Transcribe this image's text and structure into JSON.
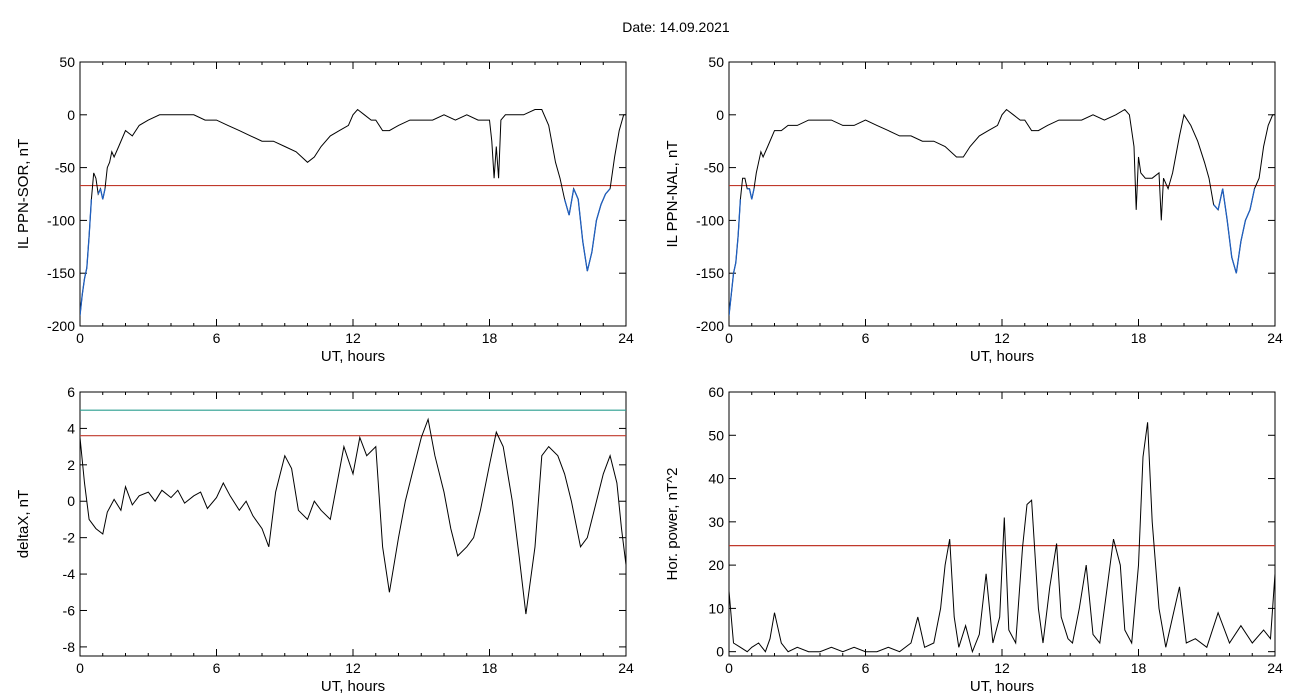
{
  "page": {
    "title": "Date:  14.09.2021"
  },
  "chart_data": [
    {
      "id": "il-sor",
      "type": "line",
      "xlabel": "UT, hours",
      "ylabel": "IL PPN-SOR, nT",
      "xlim": [
        0,
        24
      ],
      "ylim": [
        -200,
        50
      ],
      "xticks": [
        0,
        6,
        12,
        18,
        24
      ],
      "yticks": [
        -200,
        -150,
        -100,
        -50,
        0,
        50
      ],
      "threshold": {
        "value": -67,
        "color": "#c0392b"
      },
      "highlight_color": "#1f5fbf",
      "series": [
        {
          "color": "#000000",
          "x": [
            0,
            0.1,
            0.2,
            0.3,
            0.4,
            0.5,
            0.6,
            0.7,
            0.8,
            0.9,
            1.0,
            1.1,
            1.2,
            1.3,
            1.4,
            1.5,
            1.7,
            2.0,
            2.3,
            2.6,
            3.0,
            3.5,
            4.0,
            4.5,
            5.0,
            5.5,
            6.0,
            6.5,
            7.0,
            7.5,
            8.0,
            8.5,
            9.0,
            9.5,
            10.0,
            10.3,
            10.6,
            11.0,
            11.4,
            11.8,
            12.0,
            12.2,
            12.5,
            12.8,
            13.0,
            13.3,
            13.6,
            14.0,
            14.5,
            15.0,
            15.5,
            16.0,
            16.5,
            17.0,
            17.5,
            18.0,
            18.1,
            18.2,
            18.3,
            18.4,
            18.5,
            18.7,
            19.0,
            19.5,
            20.0,
            20.3,
            20.6,
            20.9,
            21.1,
            21.3,
            21.5,
            21.7,
            21.9,
            22.1,
            22.3,
            22.5,
            22.7,
            22.9,
            23.1,
            23.3,
            23.5,
            23.7,
            23.9,
            24.0
          ],
          "y": [
            -190,
            -170,
            -155,
            -145,
            -115,
            -80,
            -55,
            -60,
            -75,
            -70,
            -80,
            -70,
            -50,
            -45,
            -35,
            -40,
            -30,
            -15,
            -20,
            -10,
            -5,
            0,
            0,
            0,
            0,
            -5,
            -5,
            -10,
            -15,
            -20,
            -25,
            -25,
            -30,
            -35,
            -45,
            -40,
            -30,
            -20,
            -15,
            -10,
            0,
            5,
            0,
            -5,
            -5,
            -15,
            -15,
            -10,
            -5,
            -5,
            -5,
            0,
            -5,
            0,
            -5,
            -5,
            -25,
            -60,
            -30,
            -60,
            -5,
            0,
            0,
            0,
            5,
            5,
            -10,
            -45,
            -60,
            -80,
            -95,
            -70,
            -80,
            -120,
            -148,
            -130,
            -100,
            -85,
            -75,
            -70,
            -40,
            -15,
            0,
            0
          ]
        }
      ]
    },
    {
      "id": "il-nal",
      "type": "line",
      "xlabel": "UT, hours",
      "ylabel": "IL PPN-NAL, nT",
      "xlim": [
        0,
        24
      ],
      "ylim": [
        -200,
        50
      ],
      "xticks": [
        0,
        6,
        12,
        18,
        24
      ],
      "yticks": [
        -200,
        -150,
        -100,
        -50,
        0,
        50
      ],
      "threshold": {
        "value": -67,
        "color": "#c0392b"
      },
      "highlight_color": "#1f5fbf",
      "series": [
        {
          "color": "#000000",
          "x": [
            0,
            0.1,
            0.2,
            0.3,
            0.4,
            0.5,
            0.6,
            0.7,
            0.8,
            0.9,
            1.0,
            1.1,
            1.2,
            1.3,
            1.4,
            1.5,
            1.7,
            2.0,
            2.3,
            2.6,
            3.0,
            3.5,
            4.0,
            4.5,
            5.0,
            5.5,
            6.0,
            6.5,
            7.0,
            7.5,
            8.0,
            8.5,
            9.0,
            9.5,
            10.0,
            10.3,
            10.6,
            11.0,
            11.4,
            11.8,
            12.0,
            12.2,
            12.5,
            12.8,
            13.0,
            13.3,
            13.6,
            14.0,
            14.5,
            15.0,
            15.5,
            16.0,
            16.5,
            17.0,
            17.4,
            17.6,
            17.8,
            17.9,
            18.0,
            18.1,
            18.3,
            18.6,
            18.9,
            19.0,
            19.1,
            19.3,
            19.5,
            19.8,
            20.0,
            20.3,
            20.6,
            20.9,
            21.1,
            21.3,
            21.5,
            21.7,
            21.9,
            22.1,
            22.3,
            22.5,
            22.7,
            22.9,
            23.1,
            23.3,
            23.5,
            23.7,
            23.9,
            24.0
          ],
          "y": [
            -190,
            -170,
            -150,
            -140,
            -115,
            -80,
            -60,
            -60,
            -70,
            -70,
            -80,
            -70,
            -55,
            -45,
            -35,
            -40,
            -30,
            -15,
            -15,
            -10,
            -10,
            -5,
            -5,
            -5,
            -10,
            -10,
            -5,
            -10,
            -15,
            -20,
            -20,
            -25,
            -25,
            -30,
            -40,
            -40,
            -30,
            -20,
            -15,
            -10,
            0,
            5,
            0,
            -5,
            -5,
            -15,
            -15,
            -10,
            -5,
            -5,
            -5,
            0,
            -5,
            0,
            5,
            0,
            -30,
            -90,
            -40,
            -55,
            -60,
            -60,
            -55,
            -100,
            -60,
            -70,
            -55,
            -20,
            0,
            -10,
            -25,
            -45,
            -60,
            -85,
            -90,
            -70,
            -100,
            -135,
            -150,
            -120,
            -100,
            -90,
            -70,
            -60,
            -30,
            -10,
            0,
            0
          ]
        }
      ]
    },
    {
      "id": "delta-x",
      "type": "line",
      "xlabel": "UT, hours",
      "ylabel": "deltaX, nT",
      "xlim": [
        0,
        24
      ],
      "ylim": [
        -8.5,
        6
      ],
      "xticks": [
        0,
        6,
        12,
        18,
        24
      ],
      "yticks": [
        -8,
        -6,
        -4,
        -2,
        0,
        2,
        4,
        6
      ],
      "thresholds": [
        {
          "value": 5.0,
          "color": "#2a9d8f"
        },
        {
          "value": 3.6,
          "color": "#c0392b"
        }
      ],
      "series": [
        {
          "color": "#000000",
          "x": [
            0,
            0.2,
            0.4,
            0.7,
            1.0,
            1.2,
            1.5,
            1.8,
            2.0,
            2.3,
            2.6,
            3.0,
            3.3,
            3.6,
            4.0,
            4.3,
            4.6,
            5.0,
            5.3,
            5.6,
            6.0,
            6.3,
            6.6,
            7.0,
            7.3,
            7.6,
            8.0,
            8.3,
            8.6,
            9.0,
            9.3,
            9.6,
            10.0,
            10.3,
            10.6,
            11.0,
            11.3,
            11.6,
            12.0,
            12.3,
            12.6,
            13.0,
            13.3,
            13.6,
            14.0,
            14.3,
            14.6,
            15.0,
            15.3,
            15.6,
            16.0,
            16.3,
            16.6,
            17.0,
            17.3,
            17.6,
            18.0,
            18.3,
            18.6,
            19.0,
            19.3,
            19.6,
            20.0,
            20.3,
            20.6,
            21.0,
            21.3,
            21.6,
            22.0,
            22.3,
            22.6,
            23.0,
            23.3,
            23.6,
            23.8,
            24.0
          ],
          "y": [
            3.5,
            1.0,
            -1.0,
            -1.5,
            -1.8,
            -0.6,
            0.1,
            -0.5,
            0.8,
            -0.2,
            0.3,
            0.5,
            0.0,
            0.6,
            0.2,
            0.6,
            -0.1,
            0.3,
            0.5,
            -0.4,
            0.2,
            1.0,
            0.3,
            -0.5,
            0.0,
            -0.8,
            -1.5,
            -2.5,
            0.5,
            2.5,
            1.8,
            -0.5,
            -1.0,
            0.0,
            -0.5,
            -1.0,
            1.0,
            3.0,
            1.5,
            3.5,
            2.5,
            3.0,
            -2.5,
            -5.0,
            -2.0,
            0.0,
            1.5,
            3.5,
            4.5,
            2.5,
            0.5,
            -1.5,
            -3.0,
            -2.5,
            -2.0,
            -0.5,
            2.0,
            3.8,
            3.0,
            0.0,
            -3.0,
            -6.2,
            -2.5,
            2.5,
            3.0,
            2.5,
            1.5,
            0.0,
            -2.5,
            -2.0,
            -0.5,
            1.5,
            2.5,
            1.0,
            -1.5,
            -3.5
          ]
        }
      ]
    },
    {
      "id": "hor-power",
      "type": "line",
      "xlabel": "UT, hours",
      "ylabel": "Hor. power, nT^2",
      "xlim": [
        0,
        24
      ],
      "ylim": [
        -1,
        60
      ],
      "xticks": [
        0,
        6,
        12,
        18,
        24
      ],
      "yticks": [
        0,
        10,
        20,
        30,
        40,
        50,
        60
      ],
      "threshold": {
        "value": 24.5,
        "color": "#c0392b"
      },
      "series": [
        {
          "color": "#000000",
          "x": [
            0,
            0.2,
            0.5,
            0.8,
            1.0,
            1.3,
            1.6,
            1.8,
            2.0,
            2.3,
            2.6,
            3.0,
            3.5,
            4.0,
            4.5,
            5.0,
            5.5,
            6.0,
            6.5,
            7.0,
            7.5,
            8.0,
            8.3,
            8.6,
            9.0,
            9.3,
            9.5,
            9.7,
            9.9,
            10.1,
            10.4,
            10.7,
            11.0,
            11.3,
            11.6,
            11.9,
            12.1,
            12.3,
            12.6,
            12.9,
            13.1,
            13.3,
            13.6,
            13.8,
            14.1,
            14.4,
            14.6,
            14.9,
            15.1,
            15.4,
            15.7,
            16.0,
            16.3,
            16.6,
            16.9,
            17.2,
            17.4,
            17.7,
            18.0,
            18.2,
            18.4,
            18.6,
            18.9,
            19.2,
            19.5,
            19.8,
            20.1,
            20.5,
            21.0,
            21.5,
            22.0,
            22.5,
            23.0,
            23.5,
            23.8,
            24.0
          ],
          "y": [
            14,
            2,
            1,
            0,
            1,
            2,
            0,
            3,
            9,
            2,
            0,
            1,
            0,
            0,
            1,
            0,
            1,
            0,
            0,
            1,
            0,
            2,
            8,
            1,
            2,
            10,
            20,
            26,
            8,
            1,
            6,
            0,
            4,
            18,
            2,
            8,
            31,
            5,
            2,
            24,
            34,
            35,
            10,
            2,
            15,
            25,
            8,
            3,
            2,
            10,
            20,
            4,
            2,
            14,
            26,
            20,
            5,
            2,
            20,
            45,
            53,
            30,
            10,
            1,
            8,
            15,
            2,
            3,
            1,
            9,
            2,
            6,
            2,
            5,
            3,
            18
          ]
        }
      ]
    }
  ]
}
